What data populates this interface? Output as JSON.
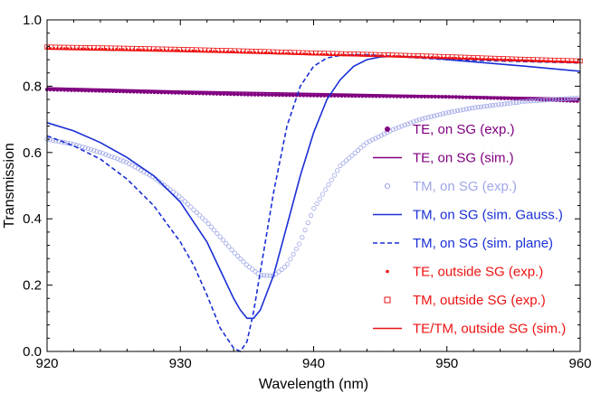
{
  "chart_data": {
    "type": "line",
    "title": "",
    "xlabel": "Wavelength (nm)",
    "ylabel": "Transmission",
    "xlim": [
      920,
      960
    ],
    "ylim": [
      0,
      1
    ],
    "xticks": [
      920,
      930,
      940,
      950,
      960
    ],
    "xtick_labels": [
      "920",
      "930",
      "940",
      "950",
      "960"
    ],
    "yticks": [
      0,
      0.2,
      0.4,
      0.6,
      0.8,
      1.0
    ],
    "ytick_labels": [
      "0.0",
      "0.2",
      "0.4",
      "0.6",
      "0.8",
      "1.0"
    ],
    "grid": false,
    "legend_position": "right",
    "colors": {
      "purple": "#800080",
      "blue": "#1a2fd6",
      "light_blue": "#9fa7e8",
      "red": "#ee1111"
    },
    "series": [
      {
        "name": "TE, on SG (exp.)",
        "style": "dot-filled",
        "color": "#800080",
        "x": [
          920,
          925,
          930,
          935,
          940,
          945,
          950,
          955,
          960
        ],
        "y": [
          0.79,
          0.785,
          0.78,
          0.775,
          0.772,
          0.77,
          0.768,
          0.763,
          0.755
        ]
      },
      {
        "name": "TE, on SG (sim.)",
        "style": "solid",
        "color": "#800080",
        "x": [
          920,
          930,
          940,
          950,
          960
        ],
        "y": [
          0.795,
          0.785,
          0.778,
          0.77,
          0.763
        ]
      },
      {
        "name": "TM, on SG (exp.)",
        "style": "circle-open",
        "color": "#9fa7e8",
        "x": [
          920,
          922,
          924,
          926,
          928,
          930,
          932,
          934,
          935,
          936,
          937,
          938,
          939,
          940,
          942,
          944,
          946,
          948,
          950,
          952,
          954,
          956,
          958,
          960
        ],
        "y": [
          0.64,
          0.625,
          0.6,
          0.57,
          0.525,
          0.465,
          0.39,
          0.3,
          0.26,
          0.23,
          0.228,
          0.26,
          0.33,
          0.43,
          0.56,
          0.63,
          0.67,
          0.7,
          0.72,
          0.735,
          0.745,
          0.755,
          0.76,
          0.765
        ]
      },
      {
        "name": "TM, on SG (sim. Gauss.)",
        "style": "solid",
        "color": "#1a2fd6",
        "x": [
          920,
          922,
          924,
          926,
          928,
          930,
          932,
          933,
          934,
          934.5,
          935,
          935.5,
          936,
          937,
          938,
          939,
          940,
          941,
          942,
          943,
          944,
          945,
          946,
          948,
          950,
          953,
          956,
          960
        ],
        "y": [
          0.69,
          0.665,
          0.63,
          0.585,
          0.53,
          0.45,
          0.33,
          0.245,
          0.16,
          0.125,
          0.1,
          0.1,
          0.125,
          0.23,
          0.38,
          0.53,
          0.66,
          0.76,
          0.82,
          0.86,
          0.88,
          0.888,
          0.89,
          0.888,
          0.88,
          0.87,
          0.86,
          0.845
        ]
      },
      {
        "name": "TM, on SG (sim. plane)",
        "style": "dashed",
        "color": "#1a2fd6",
        "x": [
          920,
          922,
          924,
          926,
          928,
          930,
          931,
          932,
          933,
          934,
          934.5,
          935,
          935.5,
          936,
          937,
          938,
          939,
          940,
          941,
          942,
          943,
          944,
          945,
          946,
          948,
          950,
          955,
          960
        ],
        "y": [
          0.65,
          0.62,
          0.58,
          0.52,
          0.44,
          0.33,
          0.26,
          0.17,
          0.07,
          0.01,
          0.0,
          0.03,
          0.12,
          0.24,
          0.48,
          0.68,
          0.8,
          0.86,
          0.885,
          0.893,
          0.895,
          0.895,
          0.893,
          0.89,
          0.885,
          0.88,
          0.875,
          0.87
        ]
      },
      {
        "name": "TE, outside SG (exp.)",
        "style": "dot-small",
        "color": "#ee1111",
        "x": [
          920,
          925,
          930,
          935,
          940,
          945,
          950,
          955,
          960
        ],
        "y": [
          0.915,
          0.912,
          0.908,
          0.903,
          0.897,
          0.892,
          0.886,
          0.879,
          0.872
        ]
      },
      {
        "name": "TM, outside SG (exp.)",
        "style": "square-open",
        "color": "#ee1111",
        "x": [
          920,
          925,
          930,
          935,
          940,
          945,
          950,
          955,
          960
        ],
        "y": [
          0.918,
          0.915,
          0.911,
          0.906,
          0.9,
          0.895,
          0.889,
          0.882,
          0.876
        ]
      },
      {
        "name": "TE/TM, outside SG (sim.)",
        "style": "solid",
        "color": "#ee1111",
        "x": [
          920,
          930,
          940,
          950,
          960
        ],
        "y": [
          0.912,
          0.905,
          0.895,
          0.885,
          0.873
        ]
      }
    ]
  }
}
